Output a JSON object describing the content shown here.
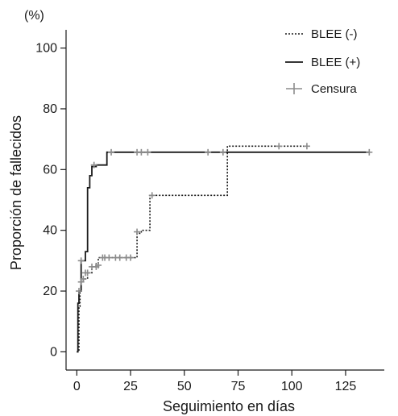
{
  "chart_data": {
    "type": "line",
    "ylabel": "Proporción de fallecidos",
    "yunit": "(%)",
    "xlabel": "Seguimiento en días",
    "xlim": [
      -5,
      143
    ],
    "ylim": [
      -6,
      106
    ],
    "xticks": [
      0,
      25,
      50,
      75,
      100,
      125
    ],
    "yticks": [
      0,
      20,
      40,
      60,
      80,
      100
    ],
    "grid": false,
    "legend_position": "top-right",
    "legend": [
      {
        "label": "BLEE (-)",
        "style": "dotted"
      },
      {
        "label": "BLEE (+)",
        "style": "solid"
      },
      {
        "label": "Censura",
        "style": "censor-mark"
      }
    ],
    "colors": {
      "curve": "#1a1a1a",
      "censor": "#8c8c8c",
      "axis": "#1a1a1a"
    },
    "series": [
      {
        "name": "BLEE (-)",
        "style": "dotted",
        "x": [
          0,
          1,
          1.5,
          2,
          3,
          5,
          7,
          9,
          10,
          12,
          27,
          28,
          30,
          32,
          34,
          50,
          67,
          70,
          100,
          107
        ],
        "y": [
          0,
          15,
          20,
          23,
          24,
          26,
          28,
          29,
          31,
          31,
          31,
          39,
          40,
          40,
          51.5,
          51.5,
          51.5,
          67.7,
          67.7,
          67.7
        ],
        "censored": [
          [
            1,
            20
          ],
          [
            2,
            23
          ],
          [
            3,
            24
          ],
          [
            4,
            26
          ],
          [
            5,
            26
          ],
          [
            7,
            28
          ],
          [
            9,
            28
          ],
          [
            10,
            28.5
          ],
          [
            12,
            31
          ],
          [
            13,
            31
          ],
          [
            15,
            31
          ],
          [
            18,
            31
          ],
          [
            20,
            31
          ],
          [
            23,
            31
          ],
          [
            25,
            31
          ],
          [
            28,
            39.5
          ],
          [
            35,
            51.5
          ],
          [
            94,
            67.7
          ],
          [
            107,
            67.7
          ]
        ]
      },
      {
        "name": "BLEE (+)",
        "style": "solid",
        "x": [
          0,
          0.5,
          1,
          2,
          3,
          4,
          5,
          6,
          7,
          9,
          12,
          14,
          16,
          60,
          136
        ],
        "y": [
          0,
          16,
          20,
          30,
          30,
          33,
          54,
          58,
          61,
          61.5,
          61.5,
          65.7,
          65.7,
          65.7,
          65.7
        ],
        "censored": [
          [
            2,
            30
          ],
          [
            8,
            61.5
          ],
          [
            16,
            65.7
          ],
          [
            28,
            65.7
          ],
          [
            30,
            65.7
          ],
          [
            33,
            65.7
          ],
          [
            61,
            65.7
          ],
          [
            68,
            65.7
          ],
          [
            136,
            65.7
          ]
        ]
      }
    ]
  }
}
